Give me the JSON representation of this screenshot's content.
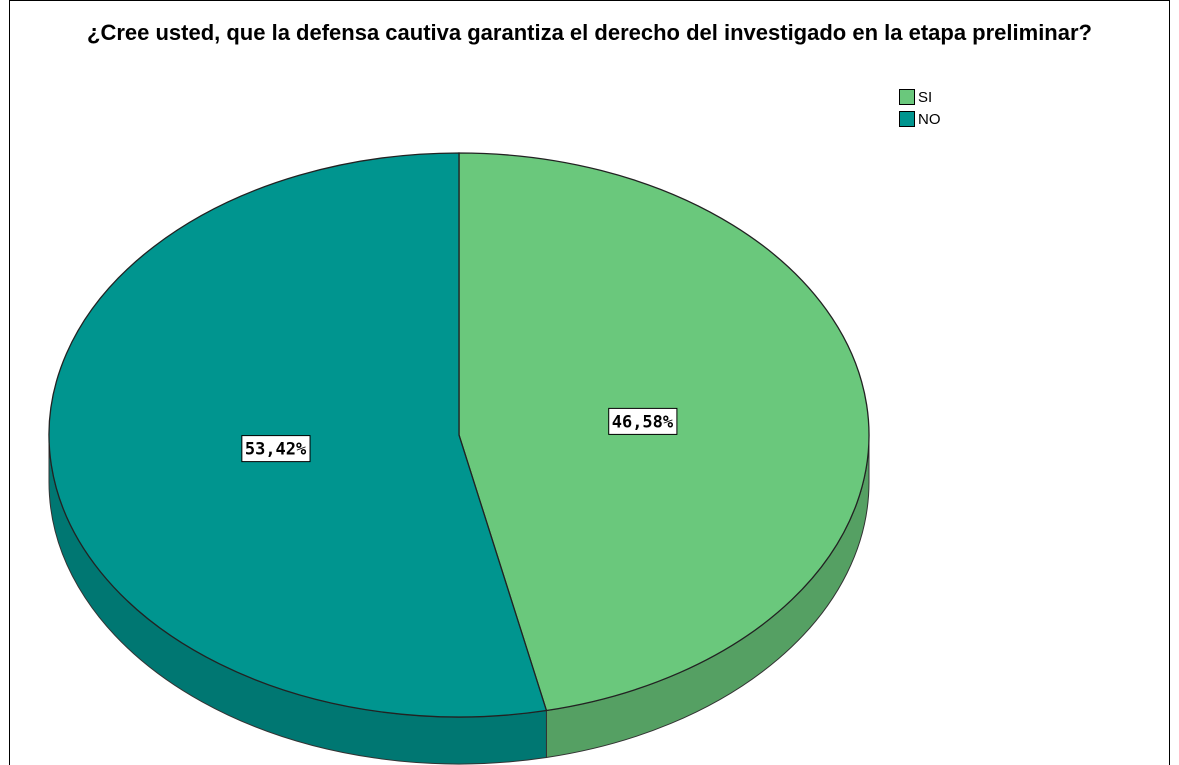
{
  "chart_data": {
    "type": "pie",
    "title": "¿Cree usted, que la defensa cautiva garantiza el derecho del investigado en la etapa preliminar?",
    "categories": [
      "SI",
      "NO"
    ],
    "values": [
      46.58,
      53.42
    ],
    "value_labels": [
      "46,58%",
      "53,42%"
    ],
    "colors": [
      "#6ac87c",
      "#00958f"
    ],
    "legend": "top-right"
  }
}
